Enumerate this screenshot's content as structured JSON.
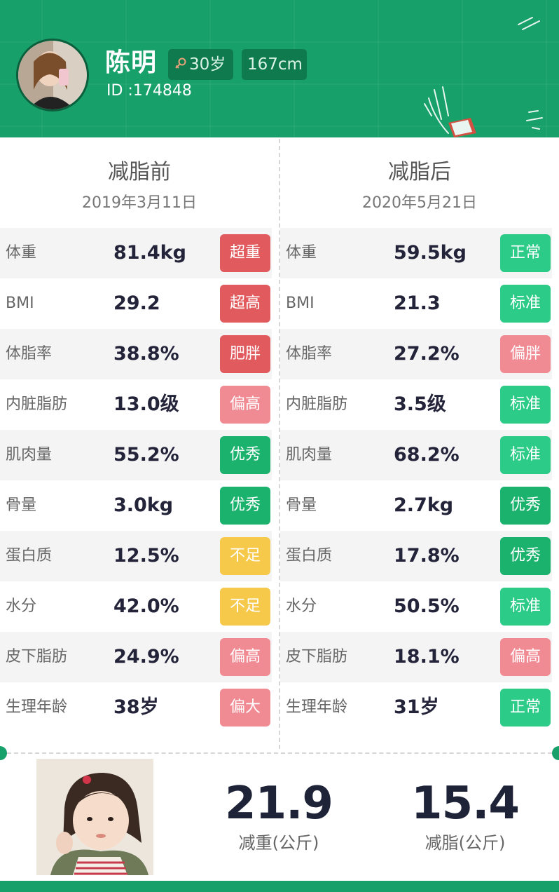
{
  "colors": {
    "brand_green": "#17a06a",
    "badge_red": "#e05a5e",
    "badge_pink": "#f08a93",
    "badge_green": "#1bb26e",
    "badge_mint": "#2ccb88",
    "badge_yellow": "#f6c94a"
  },
  "profile": {
    "name": "陈明",
    "id_label": "ID :174848",
    "age": "30岁",
    "age_icon": "female-symbol-icon",
    "height": "167cm"
  },
  "before": {
    "title": "减脂前",
    "date": "2019年3月11日",
    "rows": [
      {
        "label": "体重",
        "value": "81.4kg",
        "status": "超重",
        "color": "#e05a5e"
      },
      {
        "label": "BMI",
        "value": "29.2",
        "status": "超高",
        "color": "#e05a5e"
      },
      {
        "label": "体脂率",
        "value": "38.8%",
        "status": "肥胖",
        "color": "#e05a5e"
      },
      {
        "label": "内脏脂肪",
        "value": "13.0级",
        "status": "偏高",
        "color": "#f08a93"
      },
      {
        "label": "肌肉量",
        "value": "55.2%",
        "status": "优秀",
        "color": "#1bb26e"
      },
      {
        "label": "骨量",
        "value": "3.0kg",
        "status": "优秀",
        "color": "#1bb26e"
      },
      {
        "label": "蛋白质",
        "value": "12.5%",
        "status": "不足",
        "color": "#f6c94a"
      },
      {
        "label": "水分",
        "value": "42.0%",
        "status": "不足",
        "color": "#f6c94a"
      },
      {
        "label": "皮下脂肪",
        "value": "24.9%",
        "status": "偏高",
        "color": "#f08a93"
      },
      {
        "label": "生理年龄",
        "value": "38岁",
        "status": "偏大",
        "color": "#f08a93"
      }
    ]
  },
  "after": {
    "title": "减脂后",
    "date": "2020年5月21日",
    "rows": [
      {
        "label": "体重",
        "value": "59.5kg",
        "status": "正常",
        "color": "#2ccb88"
      },
      {
        "label": "BMI",
        "value": "21.3",
        "status": "标准",
        "color": "#2ccb88"
      },
      {
        "label": "体脂率",
        "value": "27.2%",
        "status": "偏胖",
        "color": "#f08a93"
      },
      {
        "label": "内脏脂肪",
        "value": "3.5级",
        "status": "标准",
        "color": "#2ccb88"
      },
      {
        "label": "肌肉量",
        "value": "68.2%",
        "status": "标准",
        "color": "#2ccb88"
      },
      {
        "label": "骨量",
        "value": "2.7kg",
        "status": "优秀",
        "color": "#1bb26e"
      },
      {
        "label": "蛋白质",
        "value": "17.8%",
        "status": "优秀",
        "color": "#1bb26e"
      },
      {
        "label": "水分",
        "value": "50.5%",
        "status": "标准",
        "color": "#2ccb88"
      },
      {
        "label": "皮下脂肪",
        "value": "18.1%",
        "status": "偏高",
        "color": "#f08a93"
      },
      {
        "label": "生理年龄",
        "value": "31岁",
        "status": "正常",
        "color": "#2ccb88"
      }
    ]
  },
  "summary": {
    "weight_loss": "21.9",
    "weight_loss_caption": "减重(公斤)",
    "fat_loss": "15.4",
    "fat_loss_caption": "减脂(公斤)"
  }
}
